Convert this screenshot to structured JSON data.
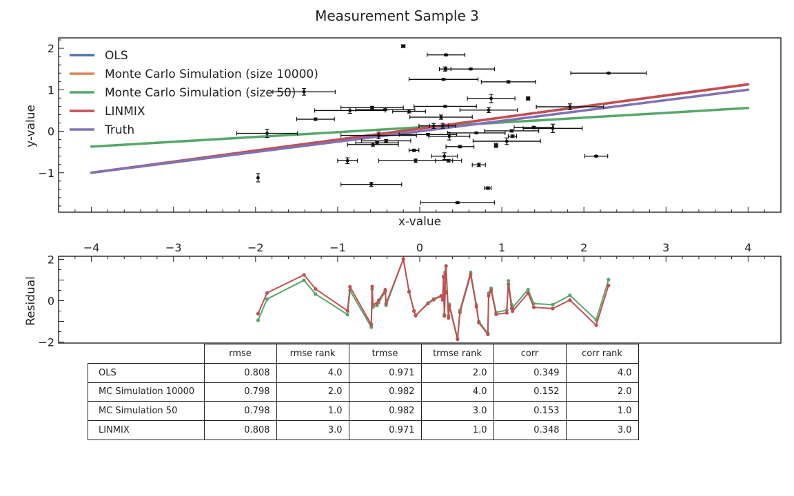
{
  "chart_data": [
    {
      "type": "scatter",
      "title": "Measurement Sample 3",
      "xlabel": "x-value",
      "ylabel": "y-value",
      "xlim": [
        -4.4,
        4.4
      ],
      "ylim": [
        -1.95,
        2.25
      ],
      "xticks": [
        -4,
        -3,
        -2,
        -1,
        0,
        1,
        2,
        3,
        4
      ],
      "yticks": [
        -1,
        0,
        1,
        2
      ],
      "legend_position": "top-left",
      "lines": [
        {
          "name": "OLS",
          "color": "#4c72b0",
          "x": [
            -4,
            4
          ],
          "y": [
            -1.0,
            1.13
          ]
        },
        {
          "name": "Monte Carlo Simulation (size 10000)",
          "color": "#dd8452",
          "x": [
            -4,
            4
          ],
          "y": [
            -1.0,
            1.13
          ]
        },
        {
          "name": "Monte Carlo Simulation (size 50)",
          "color": "#55a868",
          "x": [
            -4,
            4
          ],
          "y": [
            -0.37,
            0.56
          ]
        },
        {
          "name": "LINMIX",
          "color": "#c44e52",
          "x": [
            -4,
            4
          ],
          "y": [
            -1.0,
            1.13
          ]
        },
        {
          "name": "Truth",
          "color": "#8172b3",
          "x": [
            -4,
            4
          ],
          "y": [
            -1.0,
            1.0
          ]
        }
      ],
      "points": [
        {
          "x": -1.97,
          "y": -1.12,
          "xerr": 0.0,
          "yerr": 0.1
        },
        {
          "x": -1.86,
          "y": -0.05,
          "xerr": 0.37,
          "yerr": 0.1
        },
        {
          "x": -1.41,
          "y": 0.95,
          "xerr": 0.38,
          "yerr": 0.08
        },
        {
          "x": -1.27,
          "y": 0.29,
          "xerr": 0.23,
          "yerr": 0.03
        },
        {
          "x": -0.88,
          "y": -0.71,
          "xerr": 0.12,
          "yerr": 0.07
        },
        {
          "x": -0.85,
          "y": 0.5,
          "xerr": 0.43,
          "yerr": 0.07
        },
        {
          "x": -0.59,
          "y": -1.28,
          "xerr": 0.37,
          "yerr": 0.05
        },
        {
          "x": -0.58,
          "y": 0.57,
          "xerr": 0.38,
          "yerr": 0.03
        },
        {
          "x": -0.57,
          "y": -0.32,
          "xerr": 0.31,
          "yerr": 0.04
        },
        {
          "x": -0.52,
          "y": -0.28,
          "xerr": 0.26,
          "yerr": 0.03
        },
        {
          "x": -0.5,
          "y": -0.1,
          "xerr": 0.46,
          "yerr": 0.08
        },
        {
          "x": -0.42,
          "y": 0.52,
          "xerr": 0.36,
          "yerr": 0.02
        },
        {
          "x": -0.41,
          "y": -0.23,
          "xerr": 0.3,
          "yerr": 0.03
        },
        {
          "x": -0.2,
          "y": 2.05,
          "xerr": 0.02,
          "yerr": 0.03
        },
        {
          "x": -0.13,
          "y": 0.48,
          "xerr": 0.2,
          "yerr": 0.04
        },
        {
          "x": -0.07,
          "y": -0.46,
          "xerr": 0.06,
          "yerr": 0.03
        },
        {
          "x": -0.05,
          "y": -0.71,
          "xerr": 0.45,
          "yerr": 0.04
        },
        {
          "x": 0.1,
          "y": -0.08,
          "xerr": 0.35,
          "yerr": 0.03
        },
        {
          "x": 0.17,
          "y": 0.13,
          "xerr": 0.18,
          "yerr": 0.06
        },
        {
          "x": 0.26,
          "y": 0.34,
          "xerr": 0.38,
          "yerr": 0.05
        },
        {
          "x": 0.28,
          "y": 0.13,
          "xerr": 0.16,
          "yerr": 0.06
        },
        {
          "x": 0.29,
          "y": 1.25,
          "xerr": 0.42,
          "yerr": 0.02
        },
        {
          "x": 0.3,
          "y": -0.6,
          "xerr": 0.16,
          "yerr": 0.08
        },
        {
          "x": 0.31,
          "y": 0.6,
          "xerr": 0.38,
          "yerr": 0.02
        },
        {
          "x": 0.31,
          "y": 1.5,
          "xerr": 0.07,
          "yerr": 0.05
        },
        {
          "x": 0.32,
          "y": 1.84,
          "xerr": 0.23,
          "yerr": 0.02
        },
        {
          "x": 0.35,
          "y": -0.71,
          "xerr": 0.16,
          "yerr": 0.03
        },
        {
          "x": 0.36,
          "y": -0.12,
          "xerr": 0.25,
          "yerr": 0.09
        },
        {
          "x": 0.46,
          "y": -1.72,
          "xerr": 0.45,
          "yerr": 0.02
        },
        {
          "x": 0.49,
          "y": -0.37,
          "xerr": 0.17,
          "yerr": 0.03
        },
        {
          "x": 0.62,
          "y": 1.5,
          "xerr": 0.29,
          "yerr": 0.02
        },
        {
          "x": 0.69,
          "y": -0.04,
          "xerr": 0.35,
          "yerr": 0.02
        },
        {
          "x": 0.72,
          "y": -0.81,
          "xerr": 0.08,
          "yerr": 0.04
        },
        {
          "x": 0.83,
          "y": -1.37,
          "xerr": 0.04,
          "yerr": 0.03
        },
        {
          "x": 0.84,
          "y": 0.51,
          "xerr": 0.35,
          "yerr": 0.06
        },
        {
          "x": 0.87,
          "y": 0.79,
          "xerr": 0.29,
          "yerr": 0.1
        },
        {
          "x": 0.93,
          "y": -0.34,
          "xerr": 0.02,
          "yerr": 0.05
        },
        {
          "x": 1.06,
          "y": -0.24,
          "xerr": 0.41,
          "yerr": 0.08
        },
        {
          "x": 1.08,
          "y": 1.19,
          "xerr": 0.33,
          "yerr": 0.03
        },
        {
          "x": 1.12,
          "y": 0.01,
          "xerr": 0.33,
          "yerr": 0.03
        },
        {
          "x": 1.13,
          "y": -0.12,
          "xerr": 0.05,
          "yerr": 0.03
        },
        {
          "x": 1.32,
          "y": 0.79,
          "xerr": 0.02,
          "yerr": 0.04
        },
        {
          "x": 1.39,
          "y": 0.09,
          "xerr": 0.24,
          "yerr": 0.03
        },
        {
          "x": 1.62,
          "y": 0.07,
          "xerr": 0.36,
          "yerr": 0.1
        },
        {
          "x": 1.83,
          "y": 0.59,
          "xerr": 0.41,
          "yerr": 0.07
        },
        {
          "x": 2.15,
          "y": -0.6,
          "xerr": 0.14,
          "yerr": 0.02
        },
        {
          "x": 2.3,
          "y": 1.4,
          "xerr": 0.46,
          "yerr": 0.02
        }
      ]
    },
    {
      "type": "line",
      "ylabel": "Residual",
      "xlim": [
        -4.4,
        4.4
      ],
      "ylim": [
        -2.05,
        2.15
      ],
      "xticks": [
        -4,
        -3,
        -2,
        -1,
        0,
        1,
        2,
        3,
        4
      ],
      "yticks": [
        -2,
        0,
        2
      ],
      "series": [
        {
          "color": "#55a868",
          "x": [
            -1.97,
            -1.86,
            -1.41,
            -1.27,
            -0.88,
            -0.85,
            -0.59,
            -0.58,
            -0.57,
            -0.52,
            -0.5,
            -0.42,
            -0.41,
            -0.2,
            -0.13,
            -0.07,
            -0.05,
            0.1,
            0.17,
            0.26,
            0.28,
            0.29,
            0.3,
            0.31,
            0.31,
            0.32,
            0.35,
            0.36,
            0.46,
            0.49,
            0.62,
            0.69,
            0.72,
            0.83,
            0.84,
            0.87,
            0.93,
            1.06,
            1.08,
            1.12,
            1.13,
            1.32,
            1.39,
            1.62,
            1.83,
            2.15,
            2.3
          ],
          "y": [
            -0.95,
            0.08,
            0.99,
            0.32,
            -0.67,
            0.49,
            -1.28,
            0.56,
            -0.31,
            -0.23,
            -0.09,
            0.44,
            -0.22,
            2.01,
            0.42,
            -0.5,
            -0.72,
            -0.11,
            0.09,
            0.24,
            0.06,
            1.18,
            -0.67,
            0.44,
            1.39,
            1.69,
            -0.73,
            -0.17,
            -1.82,
            -0.46,
            1.37,
            -0.2,
            -1.0,
            -1.58,
            0.36,
            0.6,
            -0.56,
            -0.46,
            0.96,
            -0.2,
            -0.34,
            0.54,
            -0.14,
            -0.19,
            0.26,
            -0.93,
            1.02
          ]
        },
        {
          "color": "#c44e52",
          "x": [
            -1.97,
            -1.86,
            -1.41,
            -1.27,
            -0.88,
            -0.85,
            -0.59,
            -0.58,
            -0.57,
            -0.52,
            -0.5,
            -0.42,
            -0.41,
            -0.2,
            -0.13,
            -0.07,
            -0.05,
            0.1,
            0.17,
            0.26,
            0.28,
            0.29,
            0.3,
            0.31,
            0.31,
            0.32,
            0.35,
            0.36,
            0.46,
            0.49,
            0.62,
            0.69,
            0.72,
            0.83,
            0.84,
            0.87,
            0.93,
            1.06,
            1.08,
            1.12,
            1.13,
            1.32,
            1.39,
            1.62,
            1.83,
            2.15,
            2.3
          ],
          "y": [
            -0.63,
            0.38,
            1.25,
            0.57,
            -0.49,
            0.67,
            -1.15,
            0.69,
            -0.19,
            -0.12,
            0.02,
            0.53,
            -0.14,
            2.02,
            0.45,
            -0.49,
            -0.72,
            -0.14,
            0.05,
            0.22,
            0.04,
            1.15,
            -0.74,
            0.37,
            1.32,
            1.67,
            -0.84,
            -0.25,
            -1.87,
            -0.56,
            1.26,
            -0.29,
            -1.06,
            -1.63,
            0.24,
            0.5,
            -0.66,
            -0.59,
            0.8,
            -0.37,
            -0.51,
            0.36,
            -0.32,
            -0.38,
            0.03,
            -1.19,
            0.74
          ]
        }
      ]
    }
  ],
  "table": {
    "columns": [
      "rmse",
      "rmse rank",
      "trmse",
      "trmse rank",
      "corr",
      "corr rank"
    ],
    "rows": [
      {
        "label": "OLS",
        "values": [
          "0.808",
          "4.0",
          "0.971",
          "2.0",
          "0.349",
          "4.0"
        ]
      },
      {
        "label": "MC Simulation 10000",
        "values": [
          "0.798",
          "2.0",
          "0.982",
          "4.0",
          "0.152",
          "2.0"
        ]
      },
      {
        "label": "MC Simulation 50",
        "values": [
          "0.798",
          "1.0",
          "0.982",
          "3.0",
          "0.153",
          "1.0"
        ]
      },
      {
        "label": "LINMIX",
        "values": [
          "0.808",
          "3.0",
          "0.971",
          "1.0",
          "0.348",
          "3.0"
        ]
      }
    ]
  }
}
